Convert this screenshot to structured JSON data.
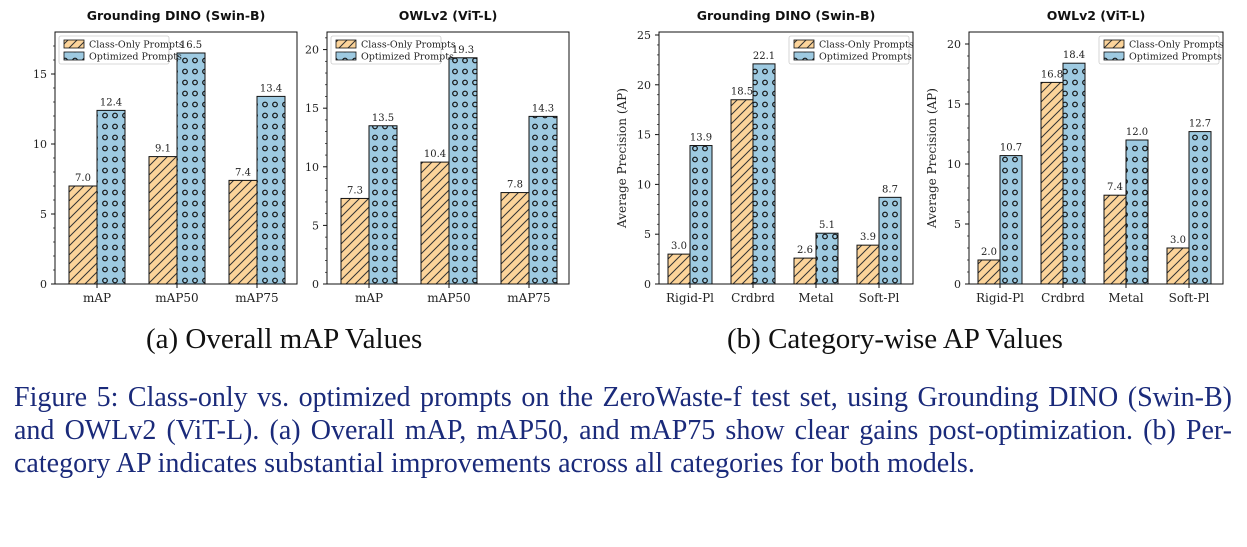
{
  "panels": [
    {
      "id": "a",
      "subcaption": "(a) Overall mAP Values"
    },
    {
      "id": "b",
      "subcaption": "(b) Category-wise AP Values"
    }
  ],
  "caption": "Figure 5:  Class-only vs. optimized prompts on the ZeroWaste-f test set, using Grounding DINO (Swin-B) and OWLv2 (ViT-L). (a) Overall mAP, mAP50, and mAP75 show clear gains post-optimization. (b) Per-category AP indicates substantial improvements across all categories for both models.",
  "colors": {
    "class_only": "#fcd49a",
    "optimized": "#9ecae1",
    "edge": "#111111",
    "caption": "#1a2a7a"
  },
  "chart_data": [
    {
      "type": "bar",
      "panel": "a",
      "title": "Grounding DINO (Swin-B)",
      "ylabel": "",
      "categories": [
        "mAP",
        "mAP50",
        "mAP75"
      ],
      "series": [
        {
          "name": "Class-Only Prompts",
          "values": [
            7.0,
            9.1,
            7.4
          ],
          "pattern": "hatch"
        },
        {
          "name": "Optimized Prompts",
          "values": [
            12.4,
            16.5,
            13.4
          ],
          "pattern": "dots"
        }
      ],
      "ylim": [
        0,
        18
      ],
      "yticks": [
        0,
        5,
        10,
        15
      ],
      "legend": "top-left",
      "grid": false
    },
    {
      "type": "bar",
      "panel": "a",
      "title": "OWLv2 (ViT-L)",
      "ylabel": "",
      "categories": [
        "mAP",
        "mAP50",
        "mAP75"
      ],
      "series": [
        {
          "name": "Class-Only Prompts",
          "values": [
            7.3,
            10.4,
            7.8
          ],
          "pattern": "hatch"
        },
        {
          "name": "Optimized Prompts",
          "values": [
            13.5,
            19.3,
            14.3
          ],
          "pattern": "dots"
        }
      ],
      "ylim": [
        0,
        21.5
      ],
      "yticks": [
        0,
        5,
        10,
        15,
        20
      ],
      "legend": "top-left",
      "grid": false
    },
    {
      "type": "bar",
      "panel": "b",
      "title": "Grounding DINO (Swin-B)",
      "ylabel": "Average Precision (AP)",
      "categories": [
        "Rigid-Pl",
        "Crdbrd",
        "Metal",
        "Soft-Pl"
      ],
      "series": [
        {
          "name": "Class-Only Prompts",
          "values": [
            3.0,
            18.5,
            2.6,
            3.9
          ],
          "pattern": "hatch"
        },
        {
          "name": "Optimized Prompts",
          "values": [
            13.9,
            22.1,
            5.1,
            8.7
          ],
          "pattern": "dots"
        }
      ],
      "ylim": [
        0,
        25.3
      ],
      "yticks": [
        0,
        5,
        10,
        15,
        20,
        25
      ],
      "legend": "top-right",
      "grid": false
    },
    {
      "type": "bar",
      "panel": "b",
      "title": "OWLv2 (ViT-L)",
      "ylabel": "Average Precision (AP)",
      "categories": [
        "Rigid-Pl",
        "Crdbrd",
        "Metal",
        "Soft-Pl"
      ],
      "series": [
        {
          "name": "Class-Only Prompts",
          "values": [
            2.0,
            16.8,
            7.4,
            3.0
          ],
          "pattern": "hatch"
        },
        {
          "name": "Optimized Prompts",
          "values": [
            10.7,
            18.4,
            12.0,
            12.7
          ],
          "pattern": "dots"
        }
      ],
      "ylim": [
        0,
        21
      ],
      "yticks": [
        0,
        5,
        10,
        15,
        20
      ],
      "legend": "top-right",
      "grid": false
    }
  ]
}
